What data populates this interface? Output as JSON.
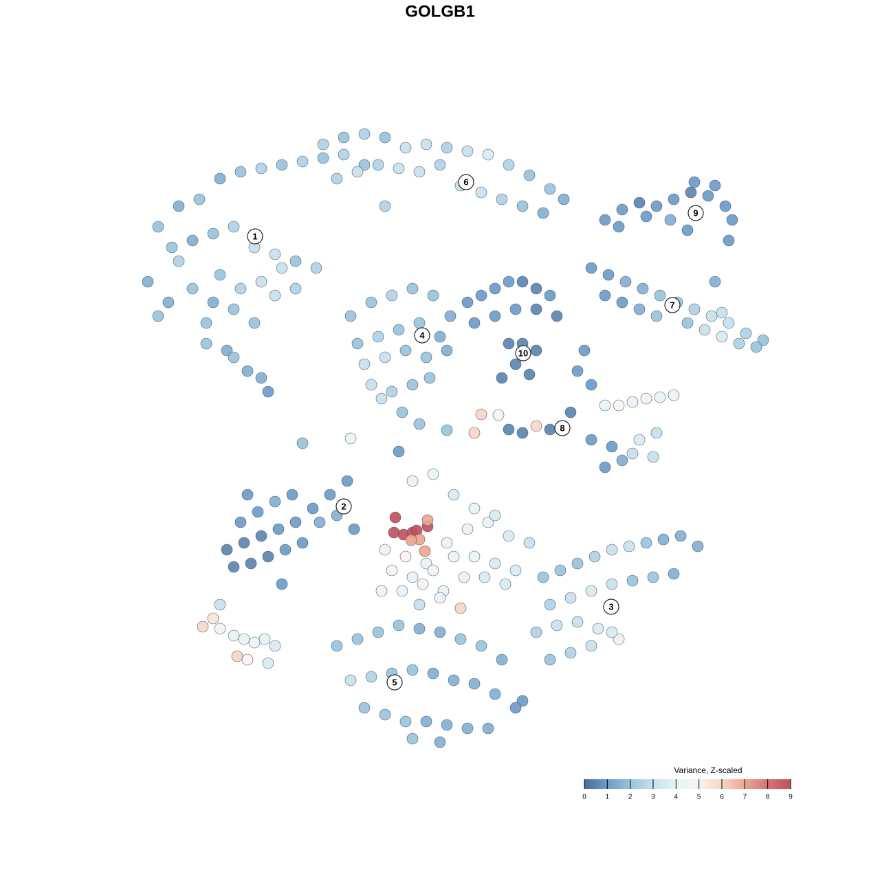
{
  "chart_data": {
    "type": "scatter",
    "title": "GOLGB1",
    "x": [
      230,
      260,
      290,
      320,
      350,
      380,
      410,
      440,
      470,
      500,
      530,
      250,
      280,
      310,
      340,
      370,
      400,
      430,
      460,
      215,
      245,
      300,
      330,
      360,
      390,
      320,
      350,
      380,
      410,
      280,
      310,
      340,
      370,
      400,
      430,
      300,
      340,
      380,
      260,
      230,
      470,
      500,
      530,
      560,
      590,
      620,
      650,
      680,
      710,
      740,
      770,
      800,
      820,
      490,
      520,
      550,
      580,
      610,
      640,
      670,
      700,
      730,
      760,
      790,
      560,
      880,
      905,
      930,
      955,
      980,
      1005,
      1030,
      1055,
      1065,
      900,
      940,
      975,
      1010,
      1040,
      1060,
      1000,
      860,
      885,
      910,
      935,
      960,
      985,
      1010,
      1035,
      1060,
      1085,
      1110,
      880,
      905,
      930,
      955,
      1000,
      1025,
      1050,
      1075,
      1100,
      1050,
      1040,
      510,
      540,
      570,
      600,
      630,
      655,
      520,
      550,
      580,
      610,
      640,
      530,
      560,
      590,
      620,
      650,
      540,
      570,
      600,
      625,
      585,
      555,
      680,
      700,
      720,
      740,
      760,
      780,
      800,
      690,
      720,
      750,
      780,
      810,
      740,
      760,
      780,
      750,
      770,
      730,
      840,
      860,
      880,
      900,
      920,
      940,
      960,
      980,
      860,
      890,
      920,
      950,
      880,
      905,
      930,
      955,
      850,
      830,
      800,
      780,
      760,
      740,
      440,
      510,
      700,
      725,
      690,
      610,
      650,
      580,
      330,
      355,
      380,
      405,
      430,
      455,
      480,
      505,
      340,
      365,
      390,
      415,
      440,
      465,
      490,
      515,
      350,
      375,
      400,
      425,
      410,
      360,
      560,
      590,
      620,
      650,
      680,
      710,
      740,
      770,
      570,
      600,
      630,
      660,
      690,
      720,
      750,
      555,
      585,
      615,
      645,
      675,
      705,
      735,
      600,
      630,
      660,
      690,
      720,
      610,
      640,
      670,
      575,
      573,
      587,
      600,
      606,
      622,
      622,
      610,
      598,
      618,
      790,
      815,
      840,
      865,
      890,
      915,
      940,
      965,
      990,
      1015,
      800,
      830,
      860,
      890,
      920,
      950,
      980,
      780,
      810,
      840,
      870,
      900,
      800,
      830,
      860,
      890,
      490,
      520,
      550,
      580,
      610,
      640,
      670,
      700,
      730,
      760,
      510,
      540,
      570,
      600,
      630,
      660,
      690,
      720,
      750,
      530,
      560,
      590,
      620,
      650,
      680,
      710,
      600,
      640,
      295,
      310,
      320,
      340,
      355,
      370,
      385,
      400,
      345,
      360,
      320,
      390
    ],
    "y": [
      330,
      300,
      290,
      260,
      250,
      245,
      240,
      235,
      230,
      225,
      240,
      360,
      350,
      340,
      330,
      360,
      370,
      380,
      390,
      410,
      440,
      470,
      510,
      540,
      570,
      400,
      420,
      410,
      390,
      420,
      440,
      450,
      470,
      430,
      420,
      500,
      520,
      550,
      380,
      460,
      210,
      200,
      195,
      200,
      215,
      210,
      215,
      220,
      225,
      240,
      255,
      275,
      290,
      260,
      250,
      240,
      245,
      250,
      240,
      270,
      280,
      290,
      300,
      310,
      300,
      320,
      305,
      295,
      300,
      290,
      280,
      285,
      300,
      320,
      330,
      315,
      320,
      265,
      270,
      350,
      335,
      390,
      400,
      410,
      420,
      430,
      440,
      450,
      460,
      470,
      485,
      495,
      430,
      440,
      450,
      460,
      470,
      480,
      490,
      500,
      505,
      455,
      410,
      460,
      440,
      430,
      420,
      430,
      460,
      500,
      490,
      480,
      470,
      490,
      530,
      520,
      510,
      520,
      510,
      560,
      570,
      560,
      550,
      600,
      580,
      440,
      430,
      420,
      410,
      410,
      420,
      430,
      470,
      460,
      450,
      450,
      460,
      500,
      500,
      510,
      530,
      545,
      550,
      540,
      560,
      590,
      590,
      585,
      580,
      578,
      575,
      640,
      650,
      660,
      665,
      680,
      670,
      640,
      630,
      510,
      600,
      625,
      620,
      630,
      625,
      645,
      638,
      603,
      604,
      630,
      617,
      626,
      657,
      800,
      790,
      780,
      770,
      760,
      740,
      720,
      700,
      825,
      820,
      810,
      800,
      790,
      760,
      750,
      770,
      760,
      745,
      730,
      720,
      850,
      720,
      800,
      810,
      820,
      790,
      770,
      760,
      780,
      790,
      830,
      840,
      830,
      810,
      810,
      820,
      830,
      860,
      860,
      850,
      860,
      840,
      840,
      850,
      700,
      690,
      720,
      740,
      750,
      880,
      870,
      885,
      753,
      775,
      778,
      775,
      772,
      766,
      757,
      785,
      786,
      802,
      840,
      830,
      820,
      810,
      800,
      795,
      790,
      785,
      780,
      795,
      880,
      870,
      860,
      850,
      845,
      840,
      835,
      920,
      910,
      905,
      915,
      930,
      960,
      950,
      940,
      920,
      940,
      930,
      920,
      910,
      915,
      920,
      930,
      940,
      960,
      1020,
      990,
      985,
      980,
      975,
      980,
      990,
      995,
      1010,
      1030,
      1030,
      1040,
      1050,
      1050,
      1055,
      1060,
      1060,
      1075,
      1080,
      912,
      900,
      915,
      925,
      930,
      935,
      930,
      940,
      955,
      960,
      880,
      965
    ],
    "values": [
      2,
      1.5,
      2,
      1.5,
      2,
      2.5,
      2,
      2.5,
      2,
      2.5,
      2,
      2,
      1.5,
      2,
      2.5,
      3,
      3,
      2,
      2.5,
      1.5,
      1.5,
      2,
      1.5,
      1.5,
      1,
      2,
      2.5,
      3,
      3,
      2,
      1.5,
      2,
      2,
      3,
      2.5,
      2,
      2,
      1.5,
      2.5,
      2,
      2.5,
      2,
      2.5,
      2,
      3,
      3,
      2.5,
      3,
      3.5,
      2.5,
      2,
      2,
      1.5,
      2.5,
      3,
      2.5,
      3,
      3,
      2.5,
      3,
      3,
      2.5,
      2,
      1.5,
      2.5,
      1,
      1,
      0.5,
      1,
      1,
      0.5,
      1,
      1,
      1,
      1,
      1,
      1.5,
      1,
      1,
      1,
      1,
      1,
      1,
      1.5,
      1.5,
      2,
      2,
      2.5,
      3,
      3,
      2.5,
      2,
      1,
      1,
      1.5,
      2,
      2,
      3,
      3.5,
      2.5,
      2,
      3,
      1.5,
      2,
      2,
      2.5,
      2,
      2,
      1.5,
      2,
      2.5,
      2,
      2,
      1.5,
      3,
      3,
      2,
      2,
      1.5,
      3,
      2.5,
      2,
      2,
      2,
      3,
      1,
      1,
      1,
      1,
      0.5,
      0.5,
      1,
      1,
      1,
      1,
      0.5,
      0.5,
      0.5,
      0.5,
      0.5,
      0.5,
      0.5,
      0.5,
      1,
      1,
      4,
      5,
      4,
      4.5,
      4,
      4.5,
      1,
      1,
      3,
      3,
      1,
      1.5,
      3.5,
      3,
      1,
      0.5,
      0.5,
      6,
      0.5,
      0.5,
      2,
      4,
      6,
      5,
      6,
      2,
      2,
      1,
      0.5,
      0.5,
      0.5,
      1,
      1,
      1,
      1,
      1,
      0.5,
      0.5,
      0.5,
      1,
      1,
      1.5,
      1.5,
      1,
      1,
      1,
      1.5,
      1,
      1,
      1,
      4.5,
      5,
      4,
      4,
      4,
      4,
      3.5,
      3,
      5,
      4,
      4.5,
      4,
      4,
      3.5,
      3.5,
      4.5,
      4,
      5,
      4,
      4,
      3.5,
      3.5,
      4,
      4,
      3.5,
      4,
      3.5,
      3,
      4,
      6,
      9,
      9,
      9,
      9,
      9,
      9,
      7,
      7,
      7,
      7,
      2,
      2,
      2,
      2.5,
      3,
      3,
      2,
      1.5,
      1.5,
      1.5,
      2.5,
      3,
      3.5,
      3,
      2,
      2,
      1.5,
      2.5,
      3,
      3,
      3.5,
      4,
      2,
      2.5,
      3,
      3.5,
      2,
      2,
      2,
      2,
      1.5,
      1.5,
      2,
      2,
      1.5,
      1,
      3,
      2.5,
      2,
      2,
      1.5,
      1.5,
      1.5,
      1.5,
      1,
      2,
      2,
      2,
      1.5,
      1.5,
      1.5,
      1.5,
      2,
      1.5,
      6,
      5.5,
      4.5,
      4,
      4,
      4.5,
      4,
      3.5,
      6,
      5,
      3,
      3.5
    ],
    "clusters": {
      "labels": [
        "1",
        "2",
        "3",
        "4",
        "5",
        "6",
        "7",
        "8",
        "9",
        "10"
      ],
      "x": [
        371,
        500,
        889,
        614,
        574,
        678,
        978,
        818,
        1012,
        761
      ],
      "y": [
        344,
        737,
        883,
        488,
        993,
        265,
        444,
        623,
        310,
        514
      ]
    },
    "colorbar": {
      "title": "Variance, Z-scaled",
      "limits": [
        0,
        9
      ],
      "ticks": [
        0,
        1,
        2,
        3,
        4,
        5,
        6,
        7,
        8,
        9
      ],
      "colors": [
        "#4a6e9c",
        "#6b9ccb",
        "#98c4de",
        "#c6e1ee",
        "#e9f2f6",
        "#f8f3f0",
        "#f9d6c4",
        "#eca68d",
        "#d87379",
        "#c44f60"
      ]
    }
  }
}
